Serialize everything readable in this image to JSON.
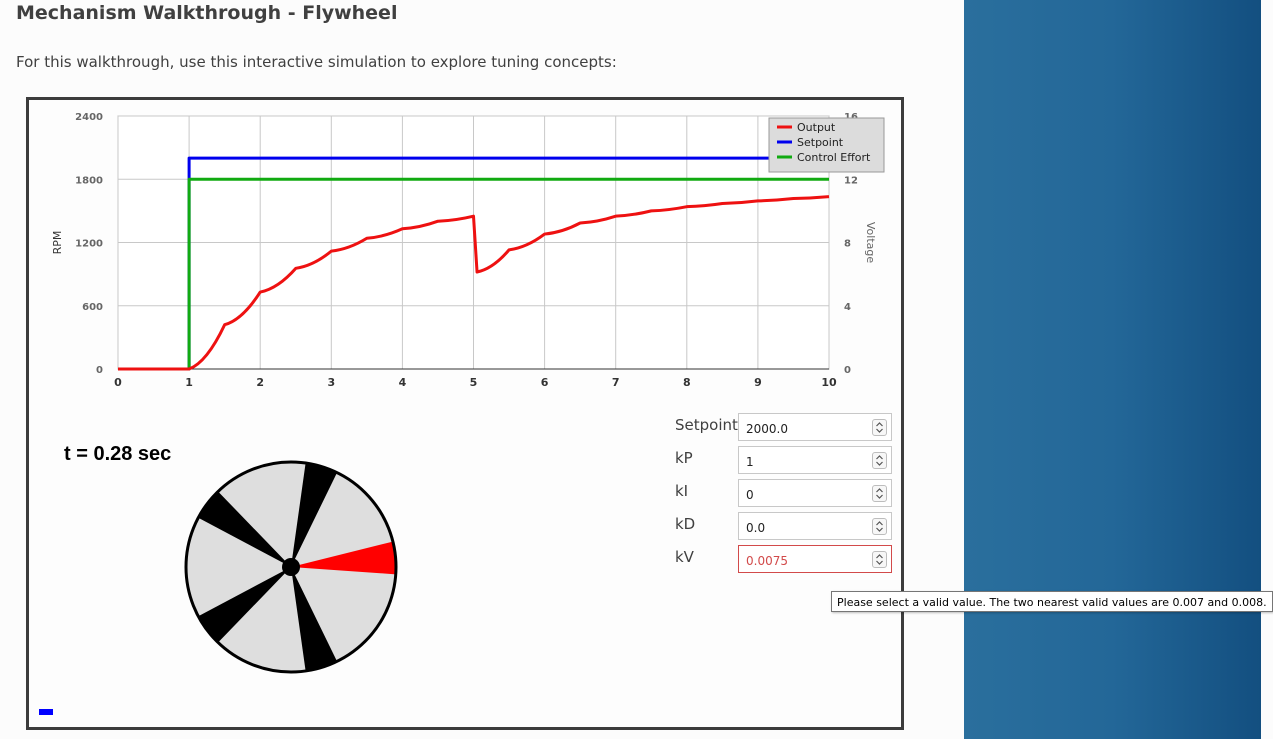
{
  "page": {
    "title": "Mechanism Walkthrough - Flywheel",
    "intro": "For this walkthrough, use this interactive simulation to explore tuning concepts:"
  },
  "chart_data": {
    "type": "line",
    "left_axis": {
      "label": "RPM",
      "range": [
        0,
        2400
      ],
      "ticks": [
        "0",
        "600",
        "1200",
        "1800",
        "2400"
      ]
    },
    "right_axis": {
      "label": "Voltage",
      "range": [
        0,
        16
      ],
      "ticks": [
        "0",
        "4",
        "8",
        "12",
        "16"
      ]
    },
    "x_axis": {
      "label": "",
      "range": [
        0,
        10
      ],
      "ticks": [
        "0",
        "1",
        "2",
        "3",
        "4",
        "5",
        "6",
        "7",
        "8",
        "9",
        "10"
      ]
    },
    "grid": true,
    "legend": {
      "placement": "top-right",
      "entries": [
        "Output",
        "Setpoint",
        "Control Effort"
      ]
    },
    "series": [
      {
        "name": "Output",
        "axis": "left",
        "color": "#ee1111",
        "x": [
          0,
          1,
          1.5,
          2,
          2.5,
          3,
          3.5,
          4,
          4.5,
          5,
          5.05,
          5.5,
          6,
          6.5,
          7,
          7.5,
          8,
          8.5,
          9,
          9.5,
          10
        ],
        "y": [
          0,
          0,
          420,
          730,
          955,
          1118,
          1240,
          1330,
          1402,
          1450,
          920,
          1130,
          1280,
          1385,
          1450,
          1500,
          1540,
          1570,
          1595,
          1617,
          1635
        ]
      },
      {
        "name": "Setpoint",
        "axis": "left",
        "color": "#0000ee",
        "x": [
          0,
          1,
          1,
          10
        ],
        "y": [
          0,
          0,
          2000,
          2000
        ]
      },
      {
        "name": "Control Effort",
        "axis": "right",
        "color": "#11aa11",
        "x": [
          0,
          1,
          1,
          10
        ],
        "y": [
          0,
          0,
          12,
          12
        ]
      }
    ]
  },
  "simulation": {
    "time_label": "t = 0.28 sec",
    "wheel_colors": {
      "light": "#dedede",
      "dark": "#000000",
      "highlight": "#ff0000"
    }
  },
  "controls": [
    {
      "label": "Setpoint",
      "value": "2000.0",
      "invalid": false
    },
    {
      "label": "kP",
      "value": "1",
      "invalid": false
    },
    {
      "label": "kI",
      "value": "0",
      "invalid": false
    },
    {
      "label": "kD",
      "value": "0.0",
      "invalid": false
    },
    {
      "label": "kV",
      "value": "0.0075",
      "invalid": true
    }
  ],
  "tooltip": {
    "text": "Please select a valid value. The two nearest valid values are 0.007 and 0.008."
  }
}
